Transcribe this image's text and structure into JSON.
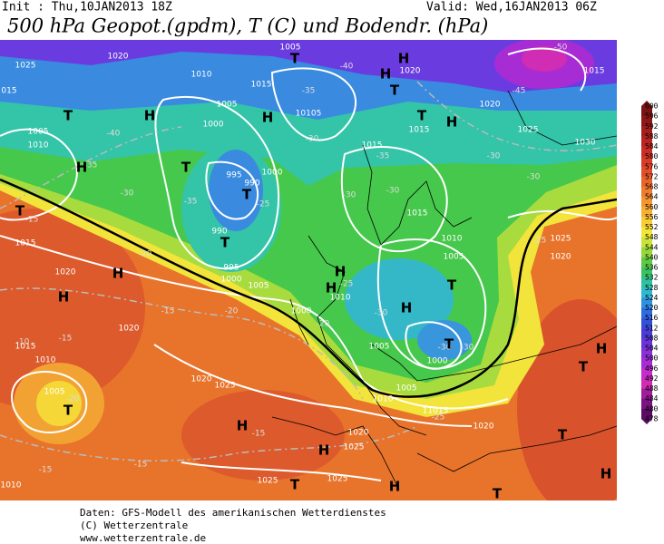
{
  "header": {
    "init": "Init : Thu,10JAN2013 18Z",
    "valid": "Valid: Wed,16JAN2013 06Z",
    "title": "500 hPa Geopot.(gpdm), T (C) und Bodendr. (hPa)"
  },
  "map": {
    "labels": [
      "1025",
      "1020",
      "1005",
      "1010",
      "1015",
      "1020",
      "1015",
      "1005",
      "10105",
      "1000",
      "1020",
      "1015",
      "1025",
      "1030",
      "1010",
      "1005",
      "1015",
      "995",
      "1000",
      "990",
      "990",
      "995",
      "1000",
      "1005",
      "1010",
      "1015",
      "1020",
      "1010",
      "1005",
      "1025",
      "1020",
      "1015",
      "1000",
      "1005",
      "1000",
      "1005",
      "1010",
      "11015",
      "1020",
      "1020",
      "1015",
      "1010",
      "1005",
      "1020",
      "1025",
      "1020",
      "1025",
      "1025",
      "1025",
      "1010",
      "015",
      "-50",
      "-45",
      "-40",
      "-35",
      "-40",
      "-30",
      "-35",
      "-30",
      "-35",
      "-25",
      "-35",
      "-30",
      "-30",
      "-30",
      "-30",
      "-25",
      "-20",
      "-15",
      "-15",
      "-20",
      "-25",
      "-20",
      "-30",
      "-30",
      "-30",
      "-25",
      "-15",
      "-10",
      "-20",
      "-15",
      "-15",
      "-15",
      "T",
      "H",
      "H",
      "T",
      "T",
      "H",
      "T",
      "H",
      "H",
      "T",
      "H",
      "T",
      "T",
      "T",
      "H",
      "H",
      "H",
      "H",
      "T",
      "H",
      "T",
      "T",
      "H",
      "H",
      "T",
      "T",
      "H",
      "T",
      "H",
      "H",
      "T"
    ]
  },
  "colorbar": {
    "levels": [
      "600",
      "596",
      "592",
      "588",
      "584",
      "580",
      "576",
      "572",
      "568",
      "564",
      "560",
      "556",
      "552",
      "548",
      "544",
      "540",
      "536",
      "532",
      "528",
      "524",
      "520",
      "516",
      "512",
      "508",
      "504",
      "500",
      "496",
      "492",
      "488",
      "484",
      "480",
      "478"
    ],
    "colors": [
      "#7a1414",
      "#8e1818",
      "#a51e1e",
      "#b82424",
      "#c82e26",
      "#d63c28",
      "#e04e2a",
      "#e8642c",
      "#ee7c2e",
      "#f29632",
      "#f5b034",
      "#f7cc36",
      "#f2e43a",
      "#c8e23a",
      "#94d63e",
      "#5cc844",
      "#3cc064",
      "#30c0a0",
      "#30b8d0",
      "#3090e0",
      "#2c6ce0",
      "#3450d8",
      "#4a3cd8",
      "#6a34d8",
      "#8a30d8",
      "#a82cd4",
      "#c42ccc",
      "#d02cb4",
      "#a01e9c",
      "#7a1480",
      "#5a0c64"
    ]
  },
  "footer": {
    "source": "Daten: GFS-Modell des amerikanischen Wetterdienstes",
    "copyright": "(C) Wetterzentrale",
    "url": "www.wetterzentrale.de"
  }
}
